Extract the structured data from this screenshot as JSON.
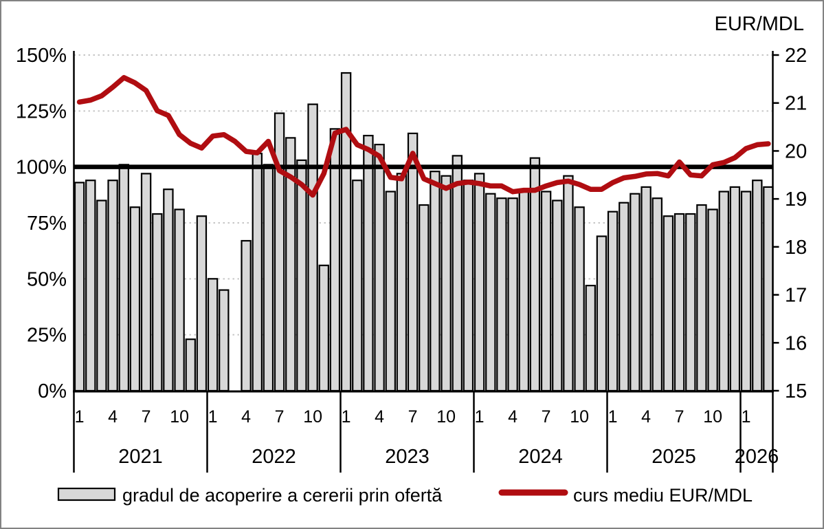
{
  "right_axis_title": "EUR/MDL",
  "legend": [
    {
      "label": "gradul de acoperire a cererii prin ofertă",
      "swatch": "bar",
      "fill": "#d8d8d8",
      "stroke": "#000000"
    },
    {
      "label": "curs mediu EUR/MDL",
      "swatch": "line",
      "color": "#b00d11"
    }
  ],
  "colors": {
    "bar_fill": "#d8d8d8",
    "bar_stroke": "#000000",
    "line": "#b00d11",
    "reference_line": "#000000",
    "gridline": "#c6c6c6",
    "axis": "#000000"
  },
  "chart_data": {
    "type": "bar+line combo (monthly)",
    "title": "",
    "left_axis": {
      "ticks": [
        "0%",
        "25%",
        "50%",
        "75%",
        "100%",
        "125%",
        "150%"
      ],
      "min": 0,
      "max": 150,
      "gridlines_pct": [
        25,
        50,
        75,
        125,
        150
      ],
      "reference_line_pct": 100
    },
    "right_axis": {
      "title": "EUR/MDL",
      "ticks": [
        15,
        16,
        17,
        18,
        19,
        20,
        21,
        22
      ],
      "min": 15,
      "max": 22
    },
    "x_axis": {
      "month_tick_labels": [
        "1",
        "4",
        "7",
        "10"
      ],
      "month_tick_positions": [
        0,
        3,
        6,
        9
      ]
    },
    "series_names": [
      "gradul de acoperire a cererii prin ofertă",
      "curs mediu EUR/MDL"
    ],
    "years": [
      {
        "year": "2021",
        "bars_pct": [
          93,
          94,
          85,
          94,
          101,
          82,
          97,
          79,
          90,
          81,
          23,
          78
        ],
        "eur_mdl": [
          21.02,
          21.06,
          21.15,
          21.33,
          21.53,
          21.42,
          21.26,
          20.84,
          20.74,
          20.34,
          20.16,
          20.06
        ]
      },
      {
        "year": "2022",
        "bars_pct": [
          50,
          45,
          0,
          67,
          106,
          101,
          124,
          113,
          103,
          128,
          56,
          117
        ],
        "eur_mdl": [
          20.31,
          20.34,
          20.2,
          19.99,
          19.96,
          20.2,
          19.59,
          19.46,
          19.3,
          19.08,
          19.53,
          20.37
        ]
      },
      {
        "year": "2023",
        "bars_pct": [
          142,
          94,
          114,
          110,
          89,
          97,
          115,
          83,
          98,
          96,
          105,
          94
        ],
        "eur_mdl": [
          20.45,
          20.13,
          20.03,
          19.89,
          19.45,
          19.42,
          19.95,
          19.42,
          19.32,
          19.22,
          19.32,
          19.35
        ]
      },
      {
        "year": "2024",
        "bars_pct": [
          97,
          88,
          86,
          86,
          89,
          104,
          89,
          85,
          96,
          82,
          47,
          69
        ],
        "eur_mdl": [
          19.32,
          19.27,
          19.27,
          19.15,
          19.18,
          19.18,
          19.27,
          19.34,
          19.37,
          19.3,
          19.2,
          19.2
        ]
      },
      {
        "year": "2025",
        "bars_pct": [
          80,
          84,
          88,
          91,
          86,
          78,
          79,
          79,
          83,
          81,
          89,
          91
        ],
        "eur_mdl": [
          19.34,
          19.44,
          19.47,
          19.52,
          19.53,
          19.48,
          19.77,
          19.5,
          19.48,
          19.71,
          19.76,
          19.86
        ]
      },
      {
        "year": "2026",
        "bars_pct": [
          89,
          94,
          91
        ],
        "eur_mdl": [
          20.05,
          20.13,
          20.15
        ]
      }
    ]
  }
}
